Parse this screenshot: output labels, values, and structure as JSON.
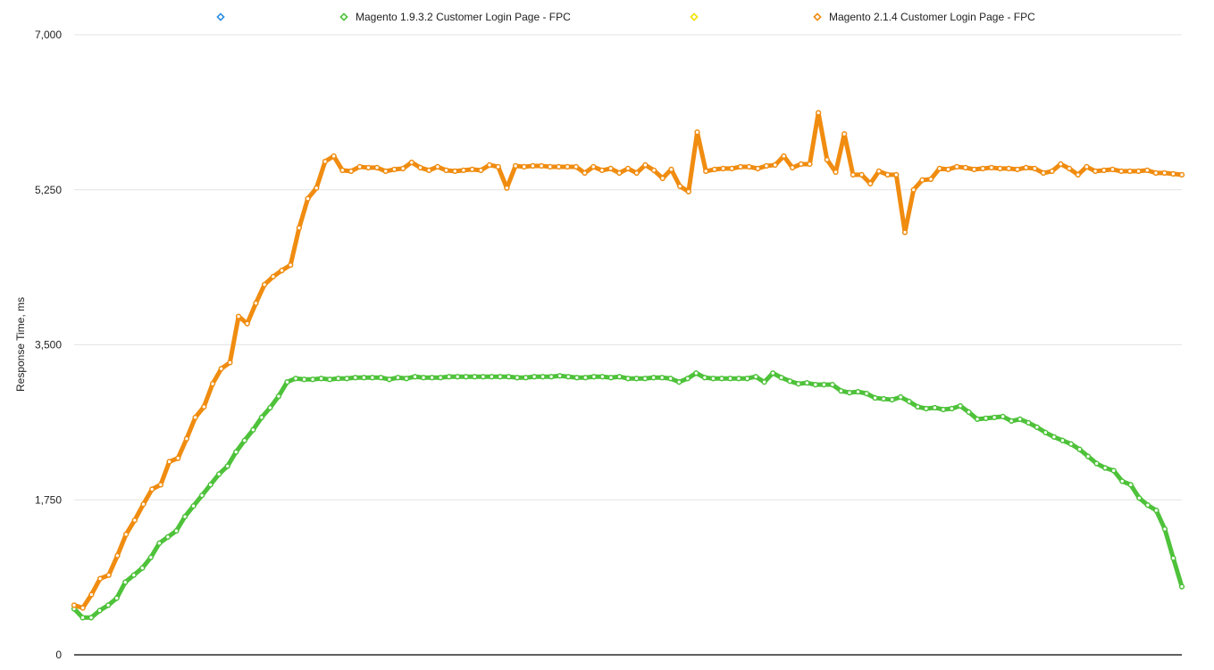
{
  "legend": {
    "items": [
      {
        "label": "",
        "color": "#2f8fe0"
      },
      {
        "label": "Magento 1.9.3.2 Customer Login Page - FPC",
        "color": "#4ec23a"
      },
      {
        "label": "",
        "color": "#f2e200"
      },
      {
        "label": "Magento 2.1.4 Customer Login Page - FPC",
        "color": "#f08c10"
      }
    ]
  },
  "chart_data": {
    "type": "line",
    "ylabel": "Response Time, ms",
    "xlabel": "",
    "ylim": [
      0,
      7000
    ],
    "yticks": [
      0,
      1750,
      3500,
      5250,
      7000
    ],
    "ytick_labels": [
      "0",
      "1,750",
      "3,500",
      "5,250",
      "7,000"
    ],
    "grid": true,
    "legend_position": "top",
    "series": [
      {
        "name": "Magento 1.9.3.2 Customer Login Page - FPC",
        "color": "#4ec23a",
        "values": [
          520,
          420,
          420,
          500,
          560,
          640,
          820,
          900,
          980,
          1100,
          1260,
          1330,
          1400,
          1560,
          1680,
          1800,
          1920,
          2040,
          2130,
          2290,
          2420,
          2540,
          2680,
          2790,
          2920,
          3080,
          3120,
          3110,
          3110,
          3120,
          3110,
          3120,
          3120,
          3130,
          3130,
          3130,
          3130,
          3110,
          3130,
          3120,
          3140,
          3130,
          3130,
          3130,
          3140,
          3140,
          3140,
          3140,
          3140,
          3140,
          3140,
          3140,
          3130,
          3130,
          3140,
          3140,
          3140,
          3150,
          3140,
          3130,
          3130,
          3140,
          3140,
          3130,
          3140,
          3120,
          3120,
          3120,
          3130,
          3130,
          3120,
          3080,
          3120,
          3180,
          3130,
          3120,
          3120,
          3120,
          3120,
          3120,
          3140,
          3080,
          3180,
          3130,
          3090,
          3060,
          3070,
          3050,
          3050,
          3050,
          2980,
          2960,
          2970,
          2950,
          2900,
          2890,
          2880,
          2910,
          2860,
          2800,
          2780,
          2790,
          2770,
          2780,
          2810,
          2740,
          2660,
          2670,
          2680,
          2690,
          2640,
          2660,
          2620,
          2570,
          2510,
          2460,
          2420,
          2380,
          2320,
          2240,
          2160,
          2110,
          2080,
          1960,
          1920,
          1770,
          1690,
          1630,
          1420,
          1090,
          770
        ]
      },
      {
        "name": "Magento 2.1.4 Customer Login Page - FPC",
        "color": "#f08c10",
        "values": [
          560,
          530,
          680,
          860,
          900,
          1120,
          1360,
          1520,
          1700,
          1870,
          1920,
          2180,
          2220,
          2440,
          2680,
          2800,
          3060,
          3230,
          3300,
          3820,
          3740,
          3970,
          4180,
          4270,
          4340,
          4400,
          4820,
          5150,
          5270,
          5570,
          5630,
          5470,
          5460,
          5510,
          5500,
          5500,
          5460,
          5480,
          5490,
          5560,
          5500,
          5470,
          5510,
          5470,
          5460,
          5470,
          5480,
          5470,
          5530,
          5510,
          5270,
          5520,
          5510,
          5520,
          5520,
          5510,
          5510,
          5510,
          5510,
          5440,
          5510,
          5470,
          5490,
          5440,
          5490,
          5440,
          5530,
          5470,
          5380,
          5480,
          5290,
          5230,
          5900,
          5460,
          5480,
          5490,
          5490,
          5510,
          5510,
          5490,
          5520,
          5530,
          5630,
          5500,
          5540,
          5540,
          6120,
          5590,
          5450,
          5880,
          5420,
          5420,
          5320,
          5460,
          5420,
          5420,
          4770,
          5250,
          5360,
          5370,
          5490,
          5480,
          5510,
          5500,
          5480,
          5490,
          5500,
          5490,
          5490,
          5480,
          5500,
          5490,
          5440,
          5460,
          5540,
          5490,
          5420,
          5510,
          5460,
          5470,
          5480,
          5460,
          5460,
          5460,
          5470,
          5440,
          5440,
          5430,
          5420
        ]
      }
    ]
  }
}
